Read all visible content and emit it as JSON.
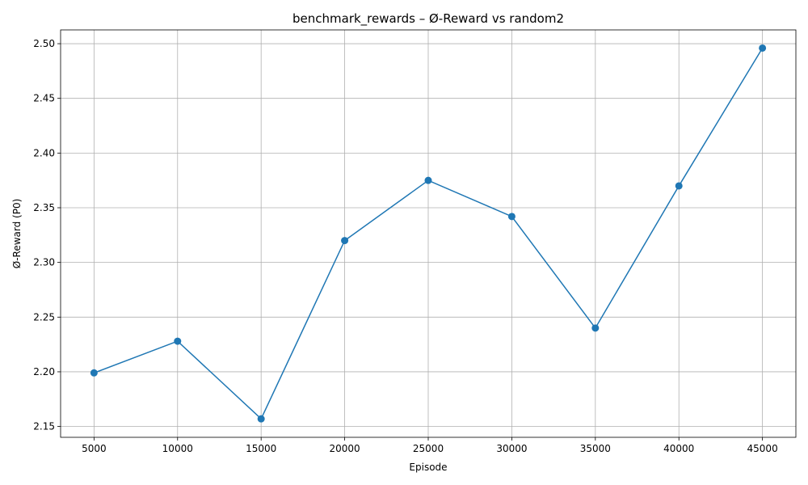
{
  "chart_data": {
    "type": "line",
    "title": "benchmark_rewards – Ø-Reward vs random2",
    "xlabel": "Episode",
    "ylabel": "Ø-Reward (P0)",
    "x": [
      5000,
      10000,
      15000,
      20000,
      25000,
      30000,
      35000,
      40000,
      45000
    ],
    "series": [
      {
        "values": [
          2.199,
          2.228,
          2.157,
          2.32,
          2.375,
          2.342,
          2.24,
          2.37,
          2.496
        ],
        "color": "#1f77b4",
        "marker": "circle"
      }
    ],
    "xticks": [
      5000,
      10000,
      15000,
      20000,
      25000,
      30000,
      35000,
      40000,
      45000
    ],
    "yticks": [
      2.15,
      2.2,
      2.25,
      2.3,
      2.35,
      2.4,
      2.45,
      2.5
    ],
    "xlim": [
      3000,
      47000
    ],
    "ylim": [
      2.1401,
      2.5126
    ],
    "grid": true
  }
}
